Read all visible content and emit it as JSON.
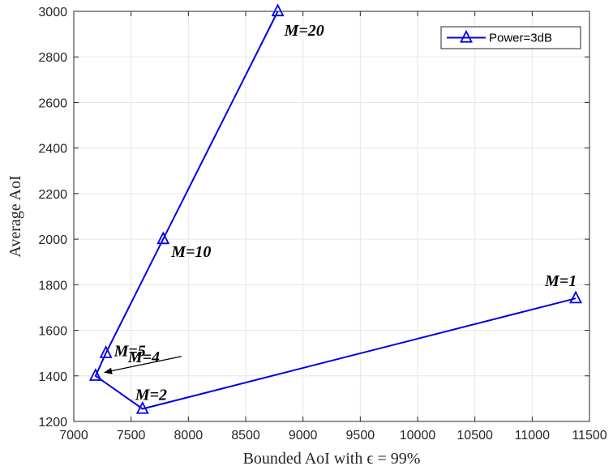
{
  "chart_data": {
    "type": "line",
    "xlabel": "Bounded AoI with ϵ = 99%",
    "ylabel": "Average AoI",
    "xlim": [
      7000,
      11500
    ],
    "ylim": [
      1200,
      3000
    ],
    "xticks": [
      7000,
      7500,
      8000,
      8500,
      9000,
      9500,
      10000,
      10500,
      11000,
      11500
    ],
    "yticks": [
      1200,
      1400,
      1600,
      1800,
      2000,
      2200,
      2400,
      2600,
      2800,
      3000
    ],
    "grid": true,
    "legend_position": "top-right",
    "series": [
      {
        "name": "Power=3dB",
        "color": "#0000e6",
        "marker": "triangle",
        "points": [
          {
            "x": 8780,
            "y": 3000,
            "label": "M=20"
          },
          {
            "x": 7780,
            "y": 2000,
            "label": "M=10"
          },
          {
            "x": 7280,
            "y": 1500,
            "label": "M=5"
          },
          {
            "x": 7190,
            "y": 1400,
            "label": "M=4"
          },
          {
            "x": 7600,
            "y": 1255,
            "label": "M=2"
          },
          {
            "x": 11380,
            "y": 1740,
            "label": "M=1"
          }
        ]
      }
    ]
  }
}
